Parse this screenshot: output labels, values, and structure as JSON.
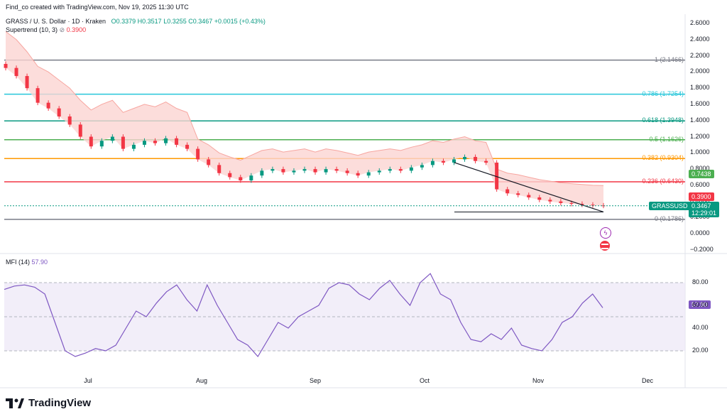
{
  "header": {
    "credit": "Find_co created with TradingView.com, Nov 19, 2025 11:30 UTC",
    "symbol": "GRASS / U. S. Dollar · 1D · Kraken",
    "ohlc": {
      "o": "O0.3379",
      "h": "H0.3517",
      "l": "L0.3255",
      "c": "C0.3467",
      "chg": "+0.0015 (+0.43%)"
    },
    "supertrend_label": "Supertrend (10, 3)",
    "supertrend_value": "0.3900"
  },
  "mfi": {
    "label": "MFI (14)",
    "value": "57.90",
    "ticks": [
      "80.00",
      "60.00",
      "40.00",
      "20.00"
    ],
    "last_tag": "57.90"
  },
  "price_ticks": [
    "2.6000",
    "2.4000",
    "2.2000",
    "2.0000",
    "1.8000",
    "1.6000",
    "1.4000",
    "1.2000",
    "1.0000",
    "0.8000",
    "0.6000",
    "0.4000",
    "0.2000",
    "0.0000",
    "−0.2000"
  ],
  "fib_levels": [
    {
      "label": "1 (2.1466)",
      "value": 2.1466,
      "color": "#787b86"
    },
    {
      "label": "0.786 (1.7254)",
      "value": 1.7254,
      "color": "#26c6da"
    },
    {
      "label": "0.618 (1.3948)",
      "value": 1.3948,
      "color": "#089981"
    },
    {
      "label": "0.5 (1.1626)",
      "value": 1.1626,
      "color": "#4caf50"
    },
    {
      "label": "0.382 (0.9304)",
      "value": 0.9304,
      "color": "#ff9800"
    },
    {
      "label": "0.236 (0.6430)",
      "value": 0.643,
      "color": "#f23645"
    },
    {
      "label": "0 (0.1786)",
      "value": 0.1786,
      "color": "#787b86"
    }
  ],
  "price_tags": {
    "green": "0.7438",
    "red": "0.3900",
    "symbol": "GRASSUSD",
    "last": "0.3467",
    "countdown": "12:29:01"
  },
  "x_ticks": [
    "Jul",
    "Aug",
    "Sep",
    "Oct",
    "Nov",
    "Dec"
  ],
  "brand": "TradingView",
  "colors": {
    "up": "#089981",
    "down": "#f23645",
    "mfi": "#7e57c2",
    "mfi_fill": "#ede7f6",
    "supertrend_fill": "#fbd5d2",
    "supertrend_up": "#4caf50"
  },
  "chart_data": {
    "type": "candlestick",
    "title": "GRASS / U. S. Dollar · 1D · Kraken",
    "ylim": [
      -0.2,
      2.6
    ],
    "x_labels": [
      "Jul",
      "Aug",
      "Sep",
      "Oct",
      "Nov",
      "Dec"
    ],
    "close_approx": [
      2.05,
      1.95,
      1.8,
      1.62,
      1.55,
      1.45,
      1.35,
      1.2,
      1.08,
      1.15,
      1.2,
      1.05,
      1.1,
      1.15,
      1.12,
      1.18,
      1.1,
      1.05,
      0.92,
      0.85,
      0.75,
      0.7,
      0.66,
      0.72,
      0.78,
      0.8,
      0.76,
      0.78,
      0.8,
      0.76,
      0.8,
      0.78,
      0.75,
      0.72,
      0.76,
      0.78,
      0.8,
      0.78,
      0.82,
      0.85,
      0.9,
      0.88,
      0.92,
      0.95,
      0.9,
      0.88,
      0.55,
      0.5,
      0.48,
      0.45,
      0.42,
      0.4,
      0.38,
      0.37,
      0.36,
      0.35,
      0.3467
    ],
    "ohlc_last": {
      "open": 0.3379,
      "high": 0.3517,
      "low": 0.3255,
      "close": 0.3467,
      "change": 0.0015,
      "change_pct": 0.43
    },
    "supertrend": {
      "params": "10, 3",
      "value": 0.39
    },
    "fibonacci": [
      {
        "ratio": 1,
        "price": 2.1466
      },
      {
        "ratio": 0.786,
        "price": 1.7254
      },
      {
        "ratio": 0.618,
        "price": 1.3948
      },
      {
        "ratio": 0.5,
        "price": 1.1626
      },
      {
        "ratio": 0.382,
        "price": 0.9304
      },
      {
        "ratio": 0.236,
        "price": 0.643
      },
      {
        "ratio": 0,
        "price": 0.1786
      }
    ],
    "mfi": {
      "period": 14,
      "last": 57.9,
      "ylim": [
        10,
        90
      ],
      "values": [
        74,
        77,
        78,
        76,
        70,
        45,
        20,
        15,
        18,
        22,
        20,
        25,
        40,
        55,
        50,
        62,
        72,
        78,
        65,
        55,
        78,
        60,
        45,
        30,
        25,
        15,
        30,
        45,
        40,
        50,
        55,
        60,
        75,
        80,
        78,
        70,
        65,
        75,
        82,
        70,
        60,
        80,
        88,
        70,
        65,
        45,
        30,
        28,
        35,
        30,
        40,
        25,
        22,
        20,
        30,
        45,
        50,
        62,
        70,
        57.9
      ]
    }
  }
}
